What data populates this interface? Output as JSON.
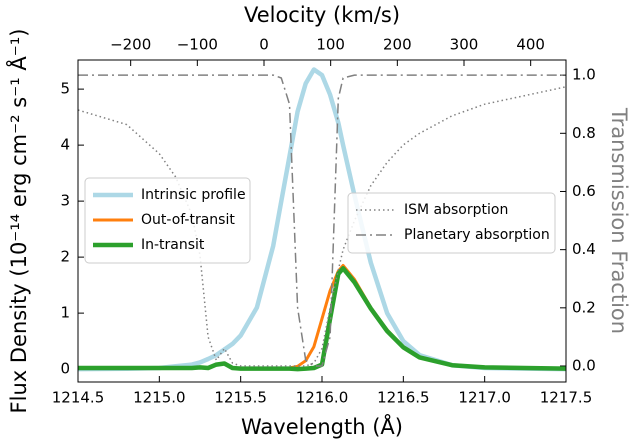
{
  "chart_data": {
    "type": "line",
    "xlabel": "Wavelength (Å)",
    "ylabel": "Flux Density (10⁻¹⁴ erg cm⁻² s⁻¹ Å⁻¹)",
    "y2label": "Transmission Fraction",
    "x2label": "Velocity (km/s)",
    "x": [
      1214.5,
      1214.8,
      1215.0,
      1215.1,
      1215.2,
      1215.25,
      1215.3,
      1215.35,
      1215.4,
      1215.45,
      1215.5,
      1215.6,
      1215.7,
      1215.75,
      1215.8,
      1215.85,
      1215.9,
      1215.95,
      1216.0,
      1216.05,
      1216.1,
      1216.13,
      1216.2,
      1216.3,
      1216.4,
      1216.5,
      1216.6,
      1216.8,
      1217.0,
      1217.5
    ],
    "series": [
      {
        "name": "Intrinsic profile",
        "color": "#add8e6",
        "width": 4.5,
        "style": "solid",
        "values": [
          0,
          0.005,
          0.02,
          0.05,
          0.08,
          0.12,
          0.18,
          0.25,
          0.35,
          0.45,
          0.6,
          1.1,
          2.2,
          3.0,
          3.8,
          4.6,
          5.1,
          5.35,
          5.25,
          4.9,
          4.4,
          4.0,
          3.1,
          1.9,
          1.0,
          0.5,
          0.25,
          0.07,
          0.02,
          0
        ]
      },
      {
        "name": "Out-of-transit",
        "color": "#ff7f0e",
        "width": 3,
        "style": "solid",
        "values": [
          0.02,
          0.02,
          0.02,
          0.02,
          0.02,
          0.03,
          0.02,
          0.08,
          0.1,
          0.02,
          0.01,
          0.01,
          0.01,
          0.01,
          0.02,
          0.05,
          0.15,
          0.4,
          0.9,
          1.4,
          1.75,
          1.85,
          1.6,
          1.1,
          0.7,
          0.4,
          0.22,
          0.07,
          0.03,
          0.01
        ]
      },
      {
        "name": "In-transit",
        "color": "#2ca02c",
        "width": 4.5,
        "style": "solid",
        "values": [
          0.02,
          0.02,
          0.02,
          0.02,
          0.02,
          0.03,
          0.02,
          0.08,
          0.1,
          0.02,
          0.01,
          0.01,
          0.01,
          0.01,
          0.01,
          0,
          0.01,
          0.02,
          0.08,
          0.9,
          1.7,
          1.8,
          1.55,
          1.08,
          0.68,
          0.39,
          0.21,
          0.07,
          0.03,
          0.01
        ]
      },
      {
        "name": "ISM absorption",
        "color": "#808080",
        "width": 1.5,
        "style": "dotted",
        "axis": "y2",
        "values": [
          0.88,
          0.83,
          0.73,
          0.65,
          0.52,
          0.38,
          0.1,
          0.02,
          0.06,
          0.01,
          0,
          0,
          0,
          0,
          0,
          0,
          0,
          0.01,
          0.06,
          0.2,
          0.33,
          0.4,
          0.5,
          0.62,
          0.7,
          0.76,
          0.8,
          0.86,
          0.9,
          0.96
        ]
      },
      {
        "name": "Planetary absorption",
        "color": "#808080",
        "width": 1.5,
        "style": "dashdot",
        "axis": "y2",
        "values": [
          1,
          1,
          1,
          1,
          1,
          1,
          1,
          1,
          1,
          1,
          1,
          1,
          1,
          0.99,
          0.9,
          0.2,
          0.02,
          0,
          0,
          0.1,
          0.92,
          0.99,
          1,
          1,
          1,
          1,
          1,
          1,
          1,
          1
        ]
      }
    ],
    "xlim": [
      1214.5,
      1217.5
    ],
    "xticks": [
      1214.5,
      {
        "value": 1215.0,
        "label": "1215.0"
      },
      1215.5,
      {
        "value": 1216.0,
        "label": "1216.0"
      },
      1216.5,
      {
        "value": 1217.0,
        "label": "1217.0"
      },
      1217.5
    ],
    "x2lim": [
      -279,
      453
    ],
    "x2ticks": [
      {
        "value": -200,
        "label": "−200"
      },
      {
        "value": -100,
        "label": "−100"
      },
      0,
      100,
      200,
      300,
      400
    ],
    "ylim": [
      -0.23,
      5.52
    ],
    "yticks": [
      0,
      1,
      2,
      3,
      4,
      5
    ],
    "y2lim": [
      -0.055,
      1.052
    ],
    "y2ticks": [
      {
        "value": 0.0,
        "label": "0.0"
      },
      0.2,
      0.4,
      0.6,
      0.8,
      {
        "value": 1.0,
        "label": "1.0"
      }
    ],
    "y2color": "#808080"
  }
}
